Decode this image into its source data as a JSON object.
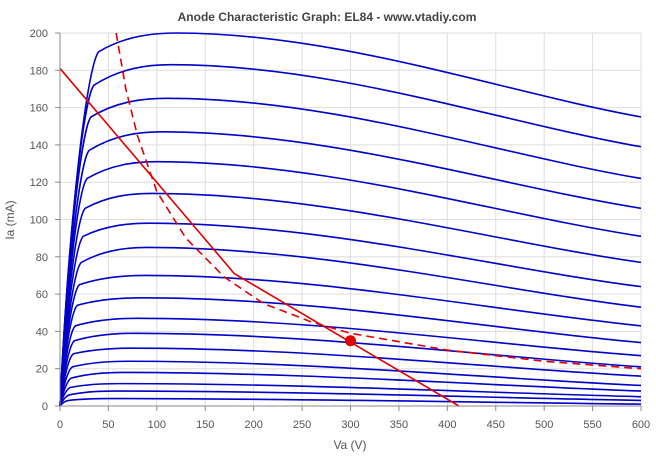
{
  "chart_data": {
    "type": "line",
    "title": "Anode Characteristic Graph: EL84 - www.vtadiy.com",
    "xlabel": "Va (V)",
    "ylabel": "Ia (mA)",
    "xlim": [
      0,
      600
    ],
    "ylim": [
      0,
      200
    ],
    "xticks": [
      0,
      50,
      100,
      150,
      200,
      250,
      300,
      350,
      400,
      450,
      500,
      550,
      600
    ],
    "yticks": [
      0,
      20,
      40,
      60,
      80,
      100,
      120,
      140,
      160,
      180,
      200
    ],
    "grid": true,
    "colors": {
      "curves": "#0000c8",
      "loadline": "#e00000",
      "grid": "#dddddd",
      "axis": "#888888"
    },
    "curves": [
      [
        [
          0,
          0
        ],
        [
          40,
          190
        ],
        [
          120,
          200
        ],
        [
          600,
          155
        ]
      ],
      [
        [
          0,
          0
        ],
        [
          35,
          172
        ],
        [
          115,
          183
        ],
        [
          600,
          139
        ]
      ],
      [
        [
          0,
          0
        ],
        [
          32,
          155
        ],
        [
          110,
          165
        ],
        [
          600,
          122
        ]
      ],
      [
        [
          0,
          0
        ],
        [
          30,
          137
        ],
        [
          105,
          147
        ],
        [
          600,
          106
        ]
      ],
      [
        [
          0,
          0
        ],
        [
          28,
          122
        ],
        [
          100,
          131
        ],
        [
          600,
          91
        ]
      ],
      [
        [
          0,
          0
        ],
        [
          26,
          106
        ],
        [
          95,
          114
        ],
        [
          600,
          77
        ]
      ],
      [
        [
          0,
          0
        ],
        [
          24,
          91
        ],
        [
          92,
          98
        ],
        [
          600,
          64
        ]
      ],
      [
        [
          0,
          0
        ],
        [
          22,
          77
        ],
        [
          90,
          85
        ],
        [
          600,
          53
        ]
      ],
      [
        [
          0,
          0
        ],
        [
          20,
          65
        ],
        [
          88,
          70
        ],
        [
          600,
          43
        ]
      ],
      [
        [
          0,
          0
        ],
        [
          18,
          54
        ],
        [
          85,
          58
        ],
        [
          600,
          34
        ]
      ],
      [
        [
          0,
          0
        ],
        [
          16,
          43
        ],
        [
          80,
          47
        ],
        [
          600,
          27
        ]
      ],
      [
        [
          0,
          0
        ],
        [
          15,
          35
        ],
        [
          78,
          39
        ],
        [
          600,
          21
        ]
      ],
      [
        [
          0,
          0
        ],
        [
          14,
          28
        ],
        [
          75,
          31
        ],
        [
          600,
          16
        ]
      ],
      [
        [
          0,
          0
        ],
        [
          13,
          21
        ],
        [
          70,
          24
        ],
        [
          600,
          11
        ]
      ],
      [
        [
          0,
          0
        ],
        [
          12,
          15
        ],
        [
          65,
          18
        ],
        [
          600,
          8
        ]
      ],
      [
        [
          0,
          0
        ],
        [
          11,
          10
        ],
        [
          60,
          12
        ],
        [
          600,
          5
        ]
      ],
      [
        [
          0,
          0
        ],
        [
          10,
          6
        ],
        [
          55,
          8
        ],
        [
          600,
          3
        ]
      ],
      [
        [
          0,
          0
        ],
        [
          9,
          3
        ],
        [
          50,
          4
        ],
        [
          600,
          1
        ]
      ]
    ],
    "load_line": [
      [
        0,
        181
      ],
      [
        180,
        71
      ],
      [
        412,
        0
      ]
    ],
    "power_curve": [
      [
        58,
        200
      ],
      [
        68,
        170
      ],
      [
        80,
        145
      ],
      [
        100,
        115
      ],
      [
        130,
        90
      ],
      [
        170,
        69
      ],
      [
        210,
        55
      ],
      [
        260,
        45
      ],
      [
        300,
        39
      ],
      [
        400,
        30
      ],
      [
        500,
        24
      ],
      [
        600,
        20
      ]
    ],
    "operating_point": {
      "x": 300,
      "y": 35
    }
  }
}
